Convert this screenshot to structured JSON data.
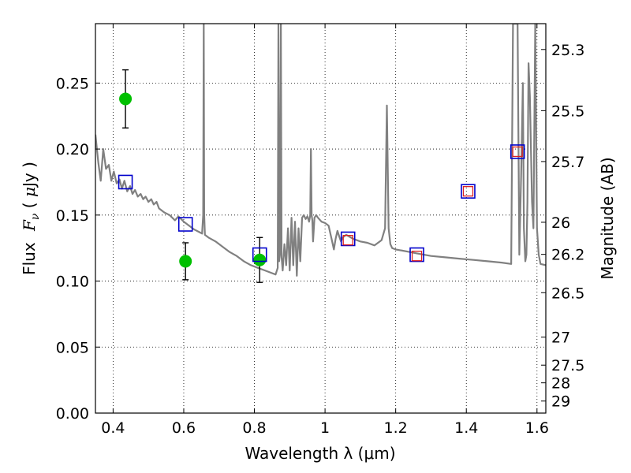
{
  "chart_data": {
    "type": "scatter",
    "title": "",
    "xlabel": "Wavelength  λ (μm)",
    "ylabel_prefix": "Flux",
    "ylabel_var": "F",
    "ylabel_sub": "ν",
    "ylabel_unit_open": " ( ",
    "ylabel_unit_mu": "μ",
    "ylabel_unit_rest": "Jy )",
    "y2label": "Magnitude (AB)",
    "xlim": [
      0.35,
      1.625
    ],
    "ylim": [
      0.0,
      0.295
    ],
    "grid": true,
    "grid_style": "dotted",
    "x_ticks": [
      0.4,
      0.6,
      0.8,
      1.0,
      1.2,
      1.4,
      1.6
    ],
    "x_tick_labels": [
      "0.4",
      "0.6",
      "0.8",
      "1",
      "1.2",
      "1.4",
      "1.6"
    ],
    "y_ticks": [
      0.0,
      0.05,
      0.1,
      0.15,
      0.2,
      0.25
    ],
    "y_tick_labels": [
      "0.00",
      "0.05",
      "0.10",
      "0.15",
      "0.20",
      "0.25"
    ],
    "mag_ticks": [
      25.3,
      25.5,
      25.7,
      26,
      26.2,
      26.5,
      27,
      27.5,
      28,
      29
    ],
    "mag_tick_labels": [
      "25.3",
      "25.5",
      "25.7",
      "26",
      "26.2",
      "26.5",
      "27",
      "27.5",
      "28",
      "29"
    ],
    "series": [
      {
        "name": "model spectrum",
        "kind": "line",
        "color": "#808080",
        "x": [
          0.35,
          0.358,
          0.365,
          0.372,
          0.38,
          0.388,
          0.395,
          0.402,
          0.41,
          0.418,
          0.425,
          0.432,
          0.44,
          0.448,
          0.455,
          0.462,
          0.47,
          0.478,
          0.485,
          0.492,
          0.5,
          0.508,
          0.515,
          0.523,
          0.53,
          0.545,
          0.56,
          0.575,
          0.585,
          0.6,
          0.615,
          0.63,
          0.645,
          0.652,
          0.655,
          0.6565,
          0.658,
          0.66,
          0.67,
          0.69,
          0.71,
          0.73,
          0.75,
          0.77,
          0.79,
          0.81,
          0.83,
          0.85,
          0.86,
          0.866,
          0.868,
          0.87,
          0.872,
          0.875,
          0.877,
          0.88,
          0.885,
          0.89,
          0.895,
          0.9,
          0.905,
          0.91,
          0.915,
          0.92,
          0.925,
          0.93,
          0.935,
          0.94,
          0.945,
          0.95,
          0.955,
          0.958,
          0.96,
          0.962,
          0.964,
          0.966,
          0.97,
          0.975,
          0.98,
          0.99,
          1.0,
          1.01,
          1.02,
          1.025,
          1.03,
          1.035,
          1.04,
          1.045,
          1.05,
          1.06,
          1.08,
          1.1,
          1.12,
          1.14,
          1.16,
          1.17,
          1.175,
          1.18,
          1.185,
          1.19,
          1.2,
          1.22,
          1.24,
          1.26,
          1.28,
          1.3,
          1.34,
          1.38,
          1.42,
          1.46,
          1.5,
          1.527,
          1.532,
          1.545,
          1.55,
          1.555,
          1.56,
          1.563,
          1.567,
          1.57,
          1.573,
          1.576,
          1.58,
          1.586,
          1.59,
          1.595,
          1.6,
          1.605,
          1.61,
          1.625
        ],
        "y": [
          0.211,
          0.19,
          0.176,
          0.2,
          0.185,
          0.188,
          0.176,
          0.183,
          0.174,
          0.177,
          0.17,
          0.176,
          0.168,
          0.172,
          0.166,
          0.169,
          0.164,
          0.166,
          0.162,
          0.164,
          0.16,
          0.162,
          0.158,
          0.16,
          0.155,
          0.152,
          0.15,
          0.146,
          0.149,
          0.145,
          0.142,
          0.139,
          0.137,
          0.136,
          0.15,
          0.295,
          0.15,
          0.135,
          0.133,
          0.13,
          0.126,
          0.122,
          0.119,
          0.115,
          0.112,
          0.11,
          0.108,
          0.106,
          0.105,
          0.11,
          0.295,
          0.115,
          0.12,
          0.295,
          0.118,
          0.108,
          0.128,
          0.112,
          0.14,
          0.108,
          0.148,
          0.112,
          0.145,
          0.104,
          0.14,
          0.115,
          0.148,
          0.15,
          0.147,
          0.149,
          0.145,
          0.15,
          0.2,
          0.15,
          0.146,
          0.13,
          0.148,
          0.15,
          0.148,
          0.145,
          0.144,
          0.142,
          0.13,
          0.124,
          0.132,
          0.138,
          0.134,
          0.13,
          0.133,
          0.135,
          0.132,
          0.13,
          0.129,
          0.127,
          0.131,
          0.14,
          0.233,
          0.14,
          0.128,
          0.125,
          0.124,
          0.123,
          0.122,
          0.121,
          0.12,
          0.119,
          0.118,
          0.117,
          0.116,
          0.115,
          0.114,
          0.113,
          0.295,
          0.295,
          0.12,
          0.18,
          0.25,
          0.14,
          0.115,
          0.12,
          0.16,
          0.265,
          0.24,
          0.16,
          0.14,
          0.295,
          0.14,
          0.12,
          0.113,
          0.112
        ]
      },
      {
        "name": "observed photometry",
        "kind": "points-errorbars",
        "color": "#00c000",
        "x": [
          0.435,
          0.605,
          0.815
        ],
        "y": [
          0.238,
          0.115,
          0.116
        ],
        "yerr": [
          0.022,
          0.014,
          0.017
        ]
      },
      {
        "name": "model photometry",
        "kind": "squares",
        "color": "#0000cc",
        "x": [
          0.435,
          0.605,
          0.815,
          1.065,
          1.26,
          1.405,
          1.545
        ],
        "y": [
          0.175,
          0.143,
          0.12,
          0.132,
          0.12,
          0.168,
          0.198
        ]
      },
      {
        "name": "model photometry (IR)",
        "kind": "small-squares",
        "color": "#dd2222",
        "x": [
          1.065,
          1.26,
          1.405,
          1.545
        ],
        "y": [
          0.131,
          0.119,
          0.168,
          0.198
        ]
      }
    ]
  }
}
